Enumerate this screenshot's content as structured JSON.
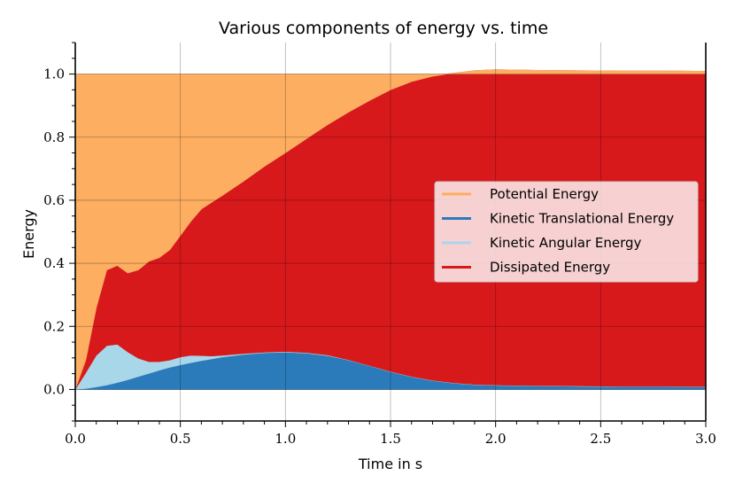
{
  "chart_data": {
    "type": "area",
    "title": "Various components of energy vs. time",
    "xlabel": "Time in s",
    "ylabel": "Energy",
    "xlim": [
      0.0,
      3.0
    ],
    "ylim": [
      -0.1,
      1.1
    ],
    "xticks": [
      "0.0",
      "0.5",
      "1.0",
      "1.5",
      "2.0",
      "2.5",
      "3.0"
    ],
    "yticks": [
      "0.0",
      "0.2",
      "0.4",
      "0.6",
      "0.8",
      "1.0"
    ],
    "grid": true,
    "stacked": true,
    "legend_position": "center-right",
    "x": [
      0,
      0.05,
      0.1,
      0.15,
      0.2,
      0.25,
      0.3,
      0.35,
      0.4,
      0.45,
      0.5,
      0.55,
      0.6,
      0.65,
      0.7,
      0.8,
      0.9,
      1.0,
      1.1,
      1.2,
      1.3,
      1.4,
      1.5,
      1.6,
      1.7,
      1.8,
      1.9,
      2.0,
      2.2,
      2.4,
      2.6,
      2.8,
      3.0
    ],
    "series": [
      {
        "name": "Kinetic Translational Energy",
        "color": "#2b7bba",
        "values": [
          0,
          0.003,
          0.008,
          0.014,
          0.022,
          0.031,
          0.041,
          0.051,
          0.061,
          0.07,
          0.078,
          0.085,
          0.091,
          0.097,
          0.103,
          0.111,
          0.116,
          0.118,
          0.115,
          0.107,
          0.093,
          0.075,
          0.056,
          0.04,
          0.028,
          0.02,
          0.015,
          0.013,
          0.011,
          0.01,
          0.009,
          0.009,
          0.008
        ]
      },
      {
        "name": "Kinetic Angular Energy",
        "color": "#a9d7ea",
        "values": [
          0,
          0.05,
          0.1,
          0.125,
          0.121,
          0.088,
          0.058,
          0.037,
          0.027,
          0.023,
          0.025,
          0.023,
          0.016,
          0.009,
          0.005,
          0.003,
          0.002,
          0.002,
          0.002,
          0.002,
          0.001,
          0.001,
          0.001,
          0.001,
          0.001,
          0.001,
          0.001,
          0.001,
          0.001,
          0.001,
          0.001,
          0.001,
          0.001
        ]
      },
      {
        "name": "Dissipated Energy",
        "color": "#d7191c",
        "values": [
          0,
          0.04,
          0.15,
          0.24,
          0.25,
          0.25,
          0.28,
          0.318,
          0.33,
          0.35,
          0.385,
          0.425,
          0.465,
          0.488,
          0.507,
          0.546,
          0.589,
          0.63,
          0.678,
          0.73,
          0.785,
          0.84,
          0.893,
          0.935,
          0.964,
          0.982,
          0.995,
          1.0,
          1.0,
          1.0,
          1.0,
          1.0,
          1.0
        ]
      },
      {
        "name": "Potential Energy",
        "color": "#fdae61",
        "values": [
          1.0,
          0.907,
          0.742,
          0.621,
          0.607,
          0.631,
          0.621,
          0.594,
          0.582,
          0.557,
          0.512,
          0.467,
          0.428,
          0.406,
          0.385,
          0.34,
          0.293,
          0.25,
          0.205,
          0.161,
          0.121,
          0.084,
          0.05,
          0.024,
          0.007,
          -0.003,
          -0.011,
          -0.014,
          -0.012,
          -0.011,
          -0.01,
          -0.01,
          -0.009
        ]
      }
    ]
  }
}
